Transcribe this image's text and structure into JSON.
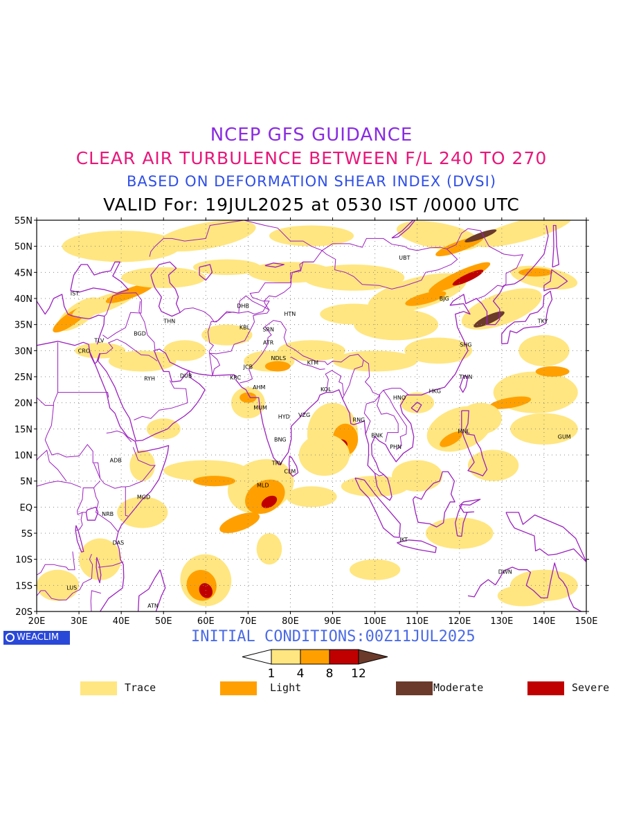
{
  "titles": {
    "line1": "NCEP GFS GUIDANCE",
    "line2": "CLEAR AIR TURBULENCE BETWEEN F/L 240 TO 270",
    "line3": "BASED ON DEFORMATION SHEAR INDEX (DVSI)",
    "line4": "VALID For: 19JUL2025 at 0530 IST /0000 UTC"
  },
  "axes": {
    "lat_labels": [
      "55N",
      "50N",
      "45N",
      "40N",
      "35N",
      "30N",
      "25N",
      "20N",
      "15N",
      "10N",
      "5N",
      "EQ",
      "5S",
      "10S",
      "15S",
      "20S"
    ],
    "lat_values": [
      55,
      50,
      45,
      40,
      35,
      30,
      25,
      20,
      15,
      10,
      5,
      0,
      -5,
      -10,
      -15,
      -20
    ],
    "lon_labels": [
      "20E",
      "30E",
      "40E",
      "50E",
      "60E",
      "70E",
      "80E",
      "90E",
      "100E",
      "110E",
      "120E",
      "130E",
      "140E",
      "150E"
    ],
    "lon_values": [
      20,
      30,
      40,
      50,
      60,
      70,
      80,
      90,
      100,
      110,
      120,
      130,
      140,
      150
    ]
  },
  "stations": [
    {
      "code": "UBT",
      "lon": 107,
      "lat": 47.8
    },
    {
      "code": "BJG",
      "lon": 116.4,
      "lat": 40
    },
    {
      "code": "TKY",
      "lon": 139.7,
      "lat": 35.7
    },
    {
      "code": "SHG",
      "lon": 121.5,
      "lat": 31.2
    },
    {
      "code": "TWN",
      "lon": 121.5,
      "lat": 25
    },
    {
      "code": "HKG",
      "lon": 114.2,
      "lat": 22.3
    },
    {
      "code": "HNO",
      "lon": 105.8,
      "lat": 21
    },
    {
      "code": "MNL",
      "lon": 121,
      "lat": 14.6
    },
    {
      "code": "GUM",
      "lon": 144.8,
      "lat": 13.5
    },
    {
      "code": "RNG",
      "lon": 96.2,
      "lat": 16.8
    },
    {
      "code": "BNK",
      "lon": 100.5,
      "lat": 13.8
    },
    {
      "code": "PHN",
      "lon": 104.9,
      "lat": 11.6
    },
    {
      "code": "JKT",
      "lon": 106.8,
      "lat": -6.2
    },
    {
      "code": "DWN",
      "lon": 130.8,
      "lat": -12.4
    },
    {
      "code": "IST",
      "lon": 29,
      "lat": 41
    },
    {
      "code": "TLV",
      "lon": 34.8,
      "lat": 32
    },
    {
      "code": "CRO",
      "lon": 31.2,
      "lat": 30
    },
    {
      "code": "BGD",
      "lon": 44.4,
      "lat": 33.3
    },
    {
      "code": "THN",
      "lon": 51.4,
      "lat": 35.7
    },
    {
      "code": "RYH",
      "lon": 46.7,
      "lat": 24.7
    },
    {
      "code": "DUB",
      "lon": 55.3,
      "lat": 25.2
    },
    {
      "code": "DHB",
      "lon": 68.8,
      "lat": 38.6
    },
    {
      "code": "KBL",
      "lon": 69.2,
      "lat": 34.5
    },
    {
      "code": "SRN",
      "lon": 74.8,
      "lat": 34.1
    },
    {
      "code": "HTN",
      "lon": 79.9,
      "lat": 37.1
    },
    {
      "code": "ATR",
      "lon": 74.8,
      "lat": 31.6
    },
    {
      "code": "JCB",
      "lon": 70,
      "lat": 26.9
    },
    {
      "code": "NDLS",
      "lon": 77.2,
      "lat": 28.6
    },
    {
      "code": "KTM",
      "lon": 85.3,
      "lat": 27.7
    },
    {
      "code": "KRC",
      "lon": 67,
      "lat": 24.9
    },
    {
      "code": "AHM",
      "lon": 72.6,
      "lat": 23
    },
    {
      "code": "KOL",
      "lon": 88.4,
      "lat": 22.6
    },
    {
      "code": "MUM",
      "lon": 72.9,
      "lat": 19.1
    },
    {
      "code": "HYD",
      "lon": 78.5,
      "lat": 17.4
    },
    {
      "code": "VZG",
      "lon": 83.3,
      "lat": 17.7
    },
    {
      "code": "BNG",
      "lon": 77.6,
      "lat": 13
    },
    {
      "code": "TRV",
      "lon": 76.9,
      "lat": 8.5
    },
    {
      "code": "CLM",
      "lon": 79.9,
      "lat": 6.9
    },
    {
      "code": "MLD",
      "lon": 73.5,
      "lat": 4.2
    },
    {
      "code": "ADB",
      "lon": 38.7,
      "lat": 9
    },
    {
      "code": "MGD",
      "lon": 45.3,
      "lat": 2
    },
    {
      "code": "NRB",
      "lon": 36.8,
      "lat": -1.3
    },
    {
      "code": "DAS",
      "lon": 39.3,
      "lat": -6.8
    },
    {
      "code": "LUS",
      "lon": 28.3,
      "lat": -15.4
    },
    {
      "code": "ATN",
      "lon": 47.5,
      "lat": -18.9
    }
  ],
  "initial_conditions": "INITIAL CONDITIONS:00Z11JUL2025",
  "colorbar": {
    "thresholds": [
      "1",
      "4",
      "8",
      "12"
    ],
    "colors": [
      "#ffe680",
      "#ffa000",
      "#c00000",
      "#6b3a2a"
    ]
  },
  "legend": [
    {
      "label": "Trace",
      "color": "#ffe680"
    },
    {
      "label": "Light",
      "color": "#ffa000"
    },
    {
      "label": "Moderate",
      "color": "#6b3a2a"
    },
    {
      "label": "Severe",
      "color": "#c00000"
    }
  ],
  "badge": {
    "label": "WEACLIM"
  },
  "colors": {
    "coast": "#9b1fbf",
    "trace": "#ffe680",
    "light": "#ffa000",
    "severe": "#c00000",
    "moderate": "#6b3a2a",
    "grid": "#888888"
  }
}
